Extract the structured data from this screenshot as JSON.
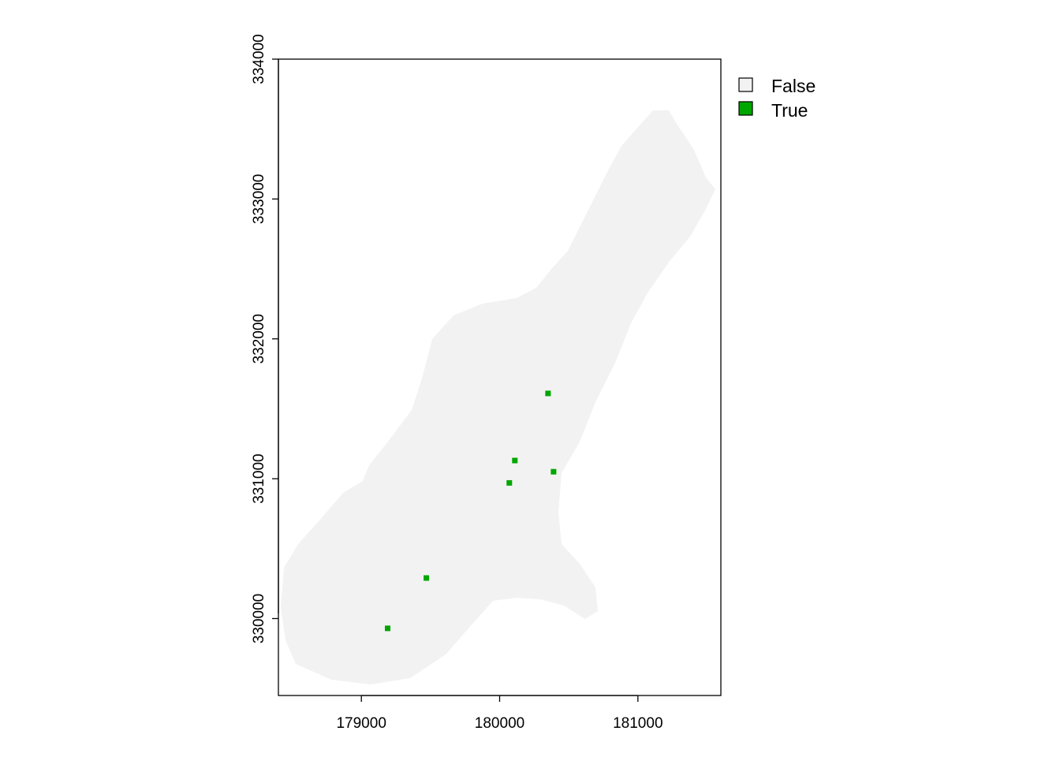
{
  "map": {
    "type": "raster",
    "x_ticks": [
      179000,
      180000,
      181000
    ],
    "y_ticks": [
      330000,
      331000,
      332000,
      333000,
      334000
    ],
    "xlim": [
      178400,
      181600
    ],
    "ylim": [
      329450,
      334000
    ],
    "background_class": "False",
    "true_cells": [
      {
        "x": 179190,
        "y": 329930
      },
      {
        "x": 179470,
        "y": 330290
      },
      {
        "x": 180070,
        "y": 330970
      },
      {
        "x": 180110,
        "y": 331130
      },
      {
        "x": 180390,
        "y": 331050
      },
      {
        "x": 180350,
        "y": 331610
      }
    ]
  },
  "legend": {
    "items": [
      {
        "label": "False",
        "color": "#f2f2f2"
      },
      {
        "label": "True",
        "color": "#00a600"
      }
    ]
  },
  "colors": {
    "false_fill": "#f2f2f2",
    "true_fill": "#00a600",
    "frame": "#000000"
  }
}
